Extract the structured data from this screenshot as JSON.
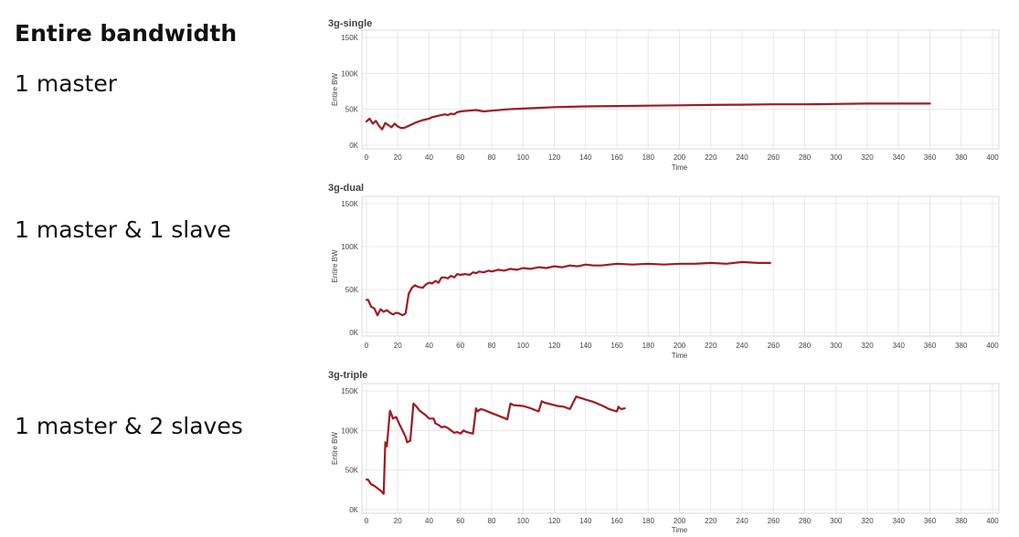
{
  "heading": "Entire bandwidth",
  "labels": [
    "1 master",
    "1 master & 1 slave",
    "1 master & 2 slaves"
  ],
  "colors": {
    "line": "#9e1b24"
  },
  "chart_data": [
    {
      "type": "line",
      "title": "3g-single",
      "xlabel": "Time",
      "ylabel": "Entire BW",
      "xlim": [
        0,
        400
      ],
      "ylim": [
        0,
        150000
      ],
      "x_ticks": [
        0,
        20,
        40,
        60,
        80,
        100,
        120,
        140,
        160,
        180,
        200,
        220,
        240,
        260,
        280,
        300,
        320,
        340,
        360,
        380,
        400
      ],
      "y_ticks": [
        0,
        50000,
        100000,
        150000
      ],
      "y_tick_labels": [
        "0K",
        "50K",
        "100K",
        "150K"
      ],
      "series": [
        {
          "name": "3g-single",
          "x": [
            0,
            2,
            4,
            6,
            8,
            10,
            12,
            14,
            16,
            18,
            20,
            22,
            24,
            28,
            32,
            36,
            40,
            42,
            46,
            50,
            52,
            54,
            56,
            58,
            60,
            65,
            70,
            75,
            80,
            90,
            100,
            110,
            120,
            140,
            160,
            180,
            200,
            220,
            240,
            260,
            280,
            300,
            320,
            340,
            360
          ],
          "y": [
            33000,
            37000,
            30000,
            34000,
            27000,
            22000,
            31000,
            28000,
            25000,
            30000,
            26000,
            24000,
            24000,
            28000,
            32000,
            35000,
            37000,
            39000,
            41000,
            43000,
            42000,
            44000,
            43000,
            46000,
            47000,
            48000,
            49000,
            47000,
            48000,
            50000,
            51000,
            52000,
            53000,
            54000,
            54500,
            55000,
            55500,
            56000,
            56500,
            57000,
            57000,
            57500,
            58000,
            58000,
            58000
          ]
        }
      ]
    },
    {
      "type": "line",
      "title": "3g-dual",
      "xlabel": "Time",
      "ylabel": "Entire BW",
      "xlim": [
        0,
        400
      ],
      "ylim": [
        0,
        150000
      ],
      "x_ticks": [
        0,
        20,
        40,
        60,
        80,
        100,
        120,
        140,
        160,
        180,
        200,
        220,
        240,
        260,
        280,
        300,
        320,
        340,
        360,
        380,
        400
      ],
      "y_ticks": [
        0,
        50000,
        100000,
        150000
      ],
      "y_tick_labels": [
        "0K",
        "50K",
        "100K",
        "150K"
      ],
      "series": [
        {
          "name": "3g-dual",
          "x": [
            0,
            1,
            3,
            5,
            7,
            9,
            11,
            13,
            15,
            17,
            19,
            21,
            23,
            25,
            27,
            29,
            31,
            33,
            36,
            38,
            40,
            42,
            44,
            46,
            48,
            50,
            52,
            54,
            56,
            58,
            60,
            63,
            66,
            68,
            70,
            72,
            75,
            78,
            80,
            84,
            88,
            92,
            96,
            100,
            105,
            110,
            115,
            120,
            125,
            130,
            135,
            140,
            145,
            150,
            160,
            170,
            180,
            190,
            200,
            210,
            220,
            230,
            240,
            250,
            258
          ],
          "y": [
            38000,
            38000,
            30000,
            28000,
            20000,
            27000,
            24000,
            26000,
            23000,
            21000,
            23000,
            22000,
            20000,
            22000,
            45000,
            52000,
            55000,
            53000,
            52000,
            56000,
            58000,
            57000,
            60000,
            58000,
            64000,
            64000,
            63000,
            66000,
            64000,
            68000,
            67000,
            68000,
            67000,
            70000,
            69000,
            71000,
            70000,
            72000,
            71000,
            73000,
            72000,
            74000,
            73000,
            75000,
            74000,
            76000,
            75000,
            77000,
            76000,
            78000,
            77000,
            79000,
            78000,
            78000,
            80000,
            79000,
            80000,
            79000,
            80000,
            80000,
            81000,
            80000,
            82000,
            81000,
            81000
          ]
        }
      ]
    },
    {
      "type": "line",
      "title": "3g-triple",
      "xlabel": "Time",
      "ylabel": "Entire BW",
      "xlim": [
        0,
        400
      ],
      "ylim": [
        0,
        150000
      ],
      "x_ticks": [
        0,
        20,
        40,
        60,
        80,
        100,
        120,
        140,
        160,
        180,
        200,
        220,
        240,
        260,
        280,
        300,
        320,
        340,
        360,
        380,
        400
      ],
      "y_ticks": [
        0,
        50000,
        100000,
        150000
      ],
      "y_tick_labels": [
        "0K",
        "50K",
        "100K",
        "150K"
      ],
      "series": [
        {
          "name": "3g-triple",
          "x": [
            0,
            1,
            3,
            5,
            7,
            9,
            10,
            11,
            12,
            13,
            15,
            17,
            19,
            21,
            23,
            25,
            26,
            28,
            30,
            32,
            34,
            36,
            38,
            40,
            43,
            44,
            46,
            48,
            50,
            52,
            54,
            56,
            58,
            60,
            62,
            64,
            66,
            68,
            70,
            71,
            73,
            75,
            80,
            85,
            90,
            92,
            94,
            100,
            105,
            110,
            112,
            114,
            118,
            122,
            126,
            130,
            134,
            135,
            137,
            140,
            145,
            150,
            155,
            160,
            161,
            162,
            163,
            165
          ],
          "y": [
            38000,
            38000,
            32000,
            30000,
            27000,
            24000,
            22000,
            20000,
            85000,
            80000,
            125000,
            115000,
            117000,
            108000,
            100000,
            92000,
            85000,
            87000,
            134000,
            130000,
            125000,
            122000,
            119000,
            115000,
            115000,
            109000,
            107000,
            104000,
            105000,
            103000,
            100000,
            97000,
            98000,
            96000,
            100000,
            98000,
            97000,
            96000,
            128000,
            124000,
            127000,
            126000,
            122000,
            118000,
            114000,
            134000,
            132000,
            131000,
            128000,
            124000,
            137000,
            135000,
            133000,
            131000,
            130000,
            127000,
            143000,
            142000,
            141000,
            139000,
            136000,
            132000,
            127000,
            124000,
            130000,
            128000,
            127000,
            128000
          ]
        }
      ]
    }
  ]
}
